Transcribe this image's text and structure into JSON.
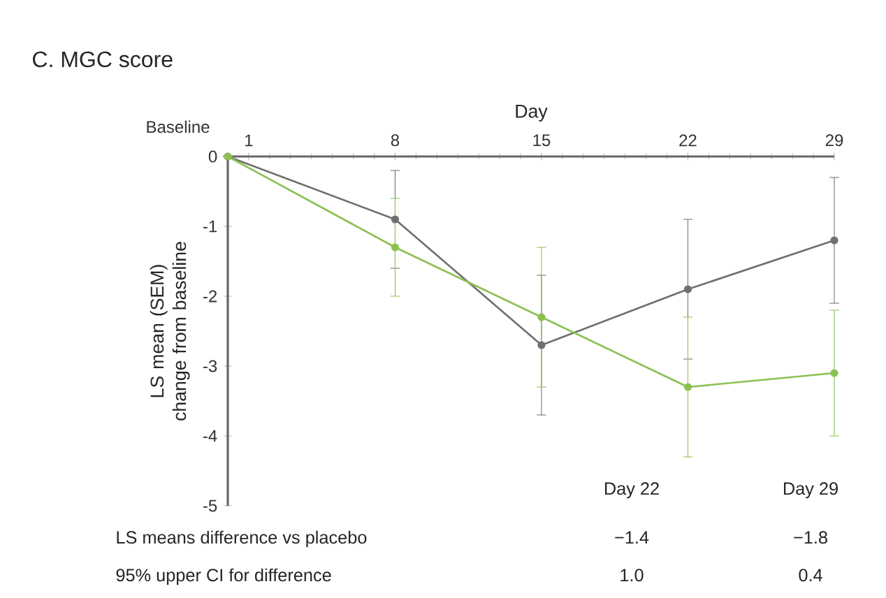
{
  "chart_data": {
    "type": "line",
    "title": "C. MGC score",
    "xlabel": "Day",
    "ylabel": "LS mean (SEM) change from baseline",
    "x": [
      0,
      8,
      15,
      22,
      29
    ],
    "xlim": [
      0,
      29
    ],
    "xticks": [
      1,
      8,
      15,
      22,
      29
    ],
    "ylim": [
      -5,
      0
    ],
    "yticks": [
      0,
      -1,
      -2,
      -3,
      -4,
      -5
    ],
    "marker": "circle",
    "line_style": "solid",
    "grid": false,
    "series": [
      {
        "color": "#707070",
        "values": [
          0,
          -0.9,
          -2.7,
          -1.9,
          -1.2
        ],
        "errors": [
          null,
          0.7,
          1.0,
          1.0,
          0.9
        ]
      },
      {
        "color": "#8cc152",
        "values": [
          0,
          -1.3,
          -2.3,
          -3.3,
          -3.1
        ],
        "errors": [
          null,
          0.7,
          1.0,
          1.0,
          0.9
        ]
      }
    ],
    "annotations": [
      {
        "text": "Baseline",
        "x": 0,
        "y": 0
      },
      "Day 22",
      "Day 29",
      "LS means difference vs placebo",
      "−1.4",
      "−1.8",
      "95% upper CI for difference",
      "1.0",
      "0.4"
    ]
  }
}
